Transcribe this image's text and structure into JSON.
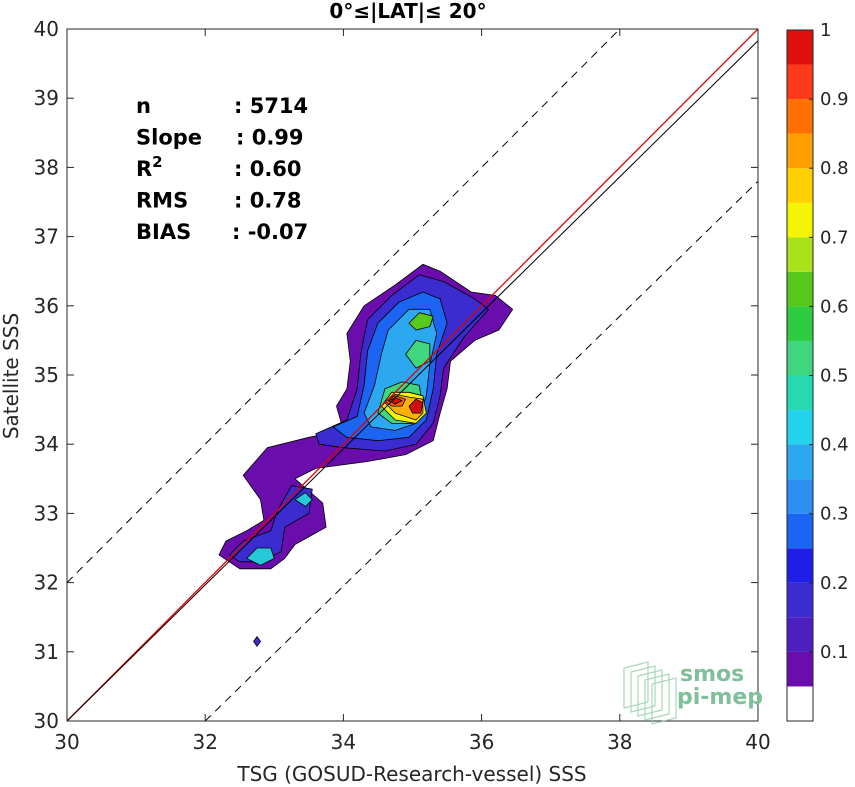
{
  "chart_data": {
    "type": "scatter",
    "subtype": "density-contour",
    "title": "0°≤|LAT|≤ 20°",
    "xlabel": "TSG (GOSUD-Research-vessel) SSS",
    "ylabel": "Satellite SSS",
    "xlim": [
      30,
      40
    ],
    "ylim": [
      30,
      40
    ],
    "xticks": [
      30,
      32,
      34,
      36,
      38,
      40
    ],
    "yticks": [
      30,
      31,
      32,
      33,
      34,
      35,
      36,
      37,
      38,
      39,
      40
    ],
    "grid": false,
    "stats": [
      {
        "label": "n",
        "value": ": 5714"
      },
      {
        "label": "Slope",
        "value": ": 0.99"
      },
      {
        "label": "R",
        "sup": "2",
        "value": ": 0.60"
      },
      {
        "label": "RMS",
        "value": ": 0.78"
      },
      {
        "label": "BIAS",
        "value": ": -0.07"
      }
    ],
    "lines": [
      {
        "role": "identity",
        "color": "#e00000",
        "points": [
          [
            30,
            30
          ],
          [
            40,
            40
          ]
        ]
      },
      {
        "role": "regression",
        "color": "#000000",
        "points": [
          [
            30,
            30
          ],
          [
            40,
            39.83
          ]
        ]
      },
      {
        "role": "upper-bound",
        "color": "#000000",
        "dash": true,
        "points": [
          [
            30,
            32
          ],
          [
            38,
            40
          ]
        ]
      },
      {
        "role": "lower-bound",
        "color": "#000000",
        "dash": true,
        "points": [
          [
            32,
            30
          ],
          [
            40,
            37.8
          ]
        ]
      }
    ],
    "density_contours": [
      {
        "level": 0.05,
        "color": "#6a0dad",
        "points": [
          [
            32.2,
            32.4
          ],
          [
            32.3,
            32.6
          ],
          [
            32.6,
            32.75
          ],
          [
            32.85,
            32.9
          ],
          [
            32.8,
            33.2
          ],
          [
            32.55,
            33.55
          ],
          [
            32.9,
            33.95
          ],
          [
            33.5,
            34.1
          ],
          [
            34.0,
            34.2
          ],
          [
            33.9,
            34.55
          ],
          [
            34.05,
            34.8
          ],
          [
            34.1,
            35.2
          ],
          [
            34.05,
            35.6
          ],
          [
            34.3,
            36.0
          ],
          [
            34.75,
            36.3
          ],
          [
            35.15,
            36.6
          ],
          [
            35.4,
            36.5
          ],
          [
            35.85,
            36.2
          ],
          [
            36.2,
            36.15
          ],
          [
            36.45,
            35.95
          ],
          [
            36.25,
            35.65
          ],
          [
            35.9,
            35.5
          ],
          [
            35.55,
            35.2
          ],
          [
            35.5,
            34.8
          ],
          [
            35.4,
            34.45
          ],
          [
            35.3,
            34.05
          ],
          [
            34.9,
            33.85
          ],
          [
            34.35,
            33.75
          ],
          [
            33.6,
            33.65
          ],
          [
            33.3,
            33.5
          ],
          [
            33.7,
            33.15
          ],
          [
            33.75,
            32.8
          ],
          [
            33.3,
            32.55
          ],
          [
            33.15,
            32.35
          ],
          [
            32.95,
            32.2
          ],
          [
            32.5,
            32.2
          ]
        ]
      },
      {
        "level": 0.15,
        "color": "#3b2ccf",
        "points": [
          [
            32.35,
            32.4
          ],
          [
            32.55,
            32.6
          ],
          [
            32.95,
            32.75
          ],
          [
            33.05,
            33.05
          ],
          [
            33.25,
            33.4
          ],
          [
            33.55,
            33.35
          ],
          [
            33.5,
            33.0
          ],
          [
            33.15,
            32.8
          ],
          [
            33.1,
            32.45
          ],
          [
            32.8,
            32.3
          ],
          [
            32.5,
            32.3
          ]
        ]
      },
      {
        "level": 0.15,
        "color": "#3b2ccf",
        "points": [
          [
            33.6,
            34.15
          ],
          [
            34.05,
            34.35
          ],
          [
            34.2,
            34.8
          ],
          [
            34.25,
            35.3
          ],
          [
            34.35,
            35.8
          ],
          [
            34.7,
            36.15
          ],
          [
            35.1,
            36.45
          ],
          [
            35.45,
            36.35
          ],
          [
            35.9,
            36.1
          ],
          [
            36.1,
            35.95
          ],
          [
            35.75,
            35.55
          ],
          [
            35.45,
            35.1
          ],
          [
            35.4,
            34.7
          ],
          [
            35.3,
            34.3
          ],
          [
            35.05,
            34.0
          ],
          [
            34.6,
            33.9
          ],
          [
            34.0,
            33.95
          ],
          [
            33.65,
            34.0
          ]
        ]
      },
      {
        "level": 0.25,
        "color": "#1c64f2",
        "points": [
          [
            33.85,
            34.25
          ],
          [
            34.2,
            34.4
          ],
          [
            34.3,
            34.85
          ],
          [
            34.35,
            35.35
          ],
          [
            34.5,
            35.75
          ],
          [
            34.8,
            36.05
          ],
          [
            35.15,
            36.2
          ],
          [
            35.4,
            36.1
          ],
          [
            35.5,
            35.75
          ],
          [
            35.35,
            35.3
          ],
          [
            35.3,
            34.8
          ],
          [
            35.2,
            34.35
          ],
          [
            34.95,
            34.1
          ],
          [
            34.5,
            34.05
          ],
          [
            34.05,
            34.1
          ]
        ]
      },
      {
        "level": 0.3,
        "color": "#2ca8f0",
        "points": [
          [
            34.3,
            34.45
          ],
          [
            34.45,
            34.85
          ],
          [
            34.55,
            35.3
          ],
          [
            34.65,
            35.65
          ],
          [
            34.95,
            35.95
          ],
          [
            35.25,
            35.95
          ],
          [
            35.35,
            35.6
          ],
          [
            35.25,
            35.15
          ],
          [
            35.2,
            34.7
          ],
          [
            35.05,
            34.3
          ],
          [
            34.75,
            34.2
          ],
          [
            34.4,
            34.25
          ]
        ]
      },
      {
        "level": 0.35,
        "color": "#26c9d8",
        "points": [
          [
            32.6,
            32.35
          ],
          [
            32.75,
            32.5
          ],
          [
            32.95,
            32.5
          ],
          [
            33.0,
            32.35
          ],
          [
            32.8,
            32.25
          ]
        ]
      },
      {
        "level": 0.35,
        "color": "#26c9d8",
        "points": [
          [
            33.3,
            33.2
          ],
          [
            33.45,
            33.3
          ],
          [
            33.55,
            33.2
          ],
          [
            33.45,
            33.1
          ]
        ]
      },
      {
        "level": 0.45,
        "color": "#3fd67f",
        "points": [
          [
            34.5,
            34.45
          ],
          [
            34.6,
            34.8
          ],
          [
            34.85,
            34.9
          ],
          [
            35.1,
            34.85
          ],
          [
            35.15,
            34.5
          ],
          [
            35.0,
            34.3
          ],
          [
            34.7,
            34.3
          ]
        ]
      },
      {
        "level": 0.45,
        "color": "#3fd67f",
        "points": [
          [
            34.9,
            35.3
          ],
          [
            35.05,
            35.5
          ],
          [
            35.25,
            35.45
          ],
          [
            35.25,
            35.2
          ],
          [
            35.05,
            35.1
          ]
        ]
      },
      {
        "level": 0.5,
        "color": "#57c81c",
        "points": [
          [
            34.95,
            35.75
          ],
          [
            35.1,
            35.9
          ],
          [
            35.3,
            35.85
          ],
          [
            35.25,
            35.7
          ],
          [
            35.05,
            35.65
          ]
        ]
      },
      {
        "level": 0.6,
        "color": "#f5f500",
        "points": [
          [
            34.55,
            34.55
          ],
          [
            34.7,
            34.75
          ],
          [
            34.95,
            34.75
          ],
          [
            35.15,
            34.7
          ],
          [
            35.2,
            34.45
          ],
          [
            35.05,
            34.3
          ],
          [
            34.75,
            34.35
          ]
        ]
      },
      {
        "level": 0.7,
        "color": "#ffb000",
        "points": [
          [
            34.6,
            34.6
          ],
          [
            34.75,
            34.72
          ],
          [
            34.95,
            34.68
          ],
          [
            35.15,
            34.65
          ],
          [
            35.15,
            34.45
          ],
          [
            35.05,
            34.35
          ],
          [
            34.75,
            34.45
          ]
        ]
      },
      {
        "level": 0.8,
        "color": "#ff6200",
        "points": [
          [
            34.6,
            34.62
          ],
          [
            34.75,
            34.7
          ],
          [
            34.9,
            34.65
          ],
          [
            34.85,
            34.55
          ],
          [
            34.7,
            34.55
          ]
        ]
      },
      {
        "level": 0.9,
        "color": "#d01010",
        "points": [
          [
            34.65,
            34.63
          ],
          [
            34.75,
            34.67
          ],
          [
            34.85,
            34.63
          ],
          [
            34.75,
            34.58
          ]
        ]
      },
      {
        "level": 0.9,
        "color": "#d01010",
        "points": [
          [
            34.95,
            34.55
          ],
          [
            35.05,
            34.65
          ],
          [
            35.15,
            34.6
          ],
          [
            35.12,
            34.45
          ],
          [
            35.0,
            34.45
          ]
        ]
      },
      {
        "level": 0.05,
        "color": "#3b2ccf",
        "points": [
          [
            32.7,
            31.15
          ],
          [
            32.75,
            31.22
          ],
          [
            32.8,
            31.15
          ],
          [
            32.75,
            31.08
          ]
        ]
      }
    ],
    "colorbar": {
      "levels": [
        0,
        0.05,
        0.1,
        0.15,
        0.2,
        0.25,
        0.3,
        0.35,
        0.4,
        0.45,
        0.5,
        0.55,
        0.6,
        0.65,
        0.7,
        0.75,
        0.8,
        0.85,
        0.9,
        0.95,
        1
      ],
      "colors": [
        "#ffffff",
        "#6a0dad",
        "#4b1fc0",
        "#3b2ccf",
        "#1e1ee6",
        "#1c64f2",
        "#2b8ef0",
        "#2ca8f0",
        "#24d3ec",
        "#26d9b0",
        "#3fd67f",
        "#2ecc40",
        "#57c81c",
        "#a8e21a",
        "#f5f500",
        "#ffd000",
        "#ffa000",
        "#ff7000",
        "#ff3a1a",
        "#e01010",
        "#8b0000"
      ],
      "ticks": [
        "0.1",
        "0.2",
        "0.3",
        "0.4",
        "0.5",
        "0.6",
        "0.7",
        "0.8",
        "0.9",
        "1"
      ],
      "tick_values": [
        0.1,
        0.2,
        0.3,
        0.4,
        0.5,
        0.6,
        0.7,
        0.8,
        0.9,
        1
      ]
    },
    "watermark": [
      "smos",
      "pi-mep"
    ]
  }
}
